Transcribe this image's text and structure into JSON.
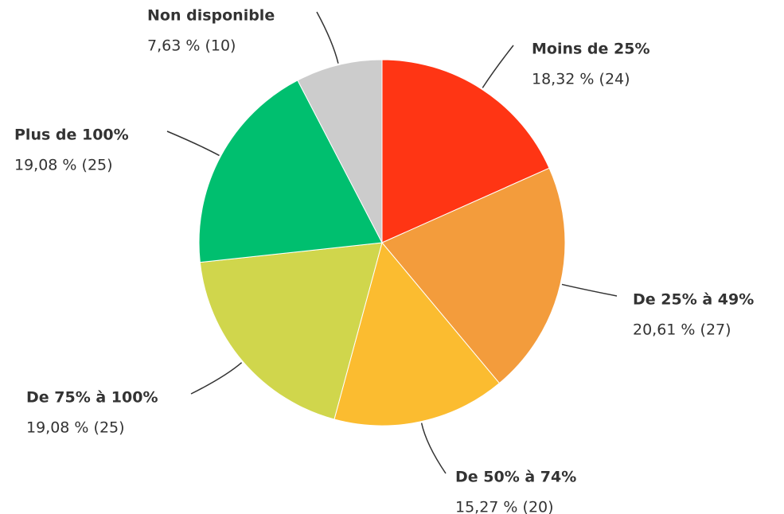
{
  "chart_data": {
    "type": "pie",
    "categories": [
      "Moins de 25%",
      "De 25% à 49%",
      "De 50% à 74%",
      "De 75% à 100%",
      "Plus de 100%",
      "Non disponible"
    ],
    "values": [
      18.32,
      20.61,
      15.27,
      19.08,
      19.08,
      7.63
    ],
    "value_labels": [
      "18,32 % (24)",
      "20,61 % (27)",
      "15,27 % (20)",
      "19,08 % (25)",
      "19,08 % (25)",
      "7,63 % (10)"
    ],
    "colors": [
      "#ff3514",
      "#f39c3c",
      "#fbbc30",
      "#d0d64c",
      "#00bf6f",
      "#cccccc"
    ]
  }
}
